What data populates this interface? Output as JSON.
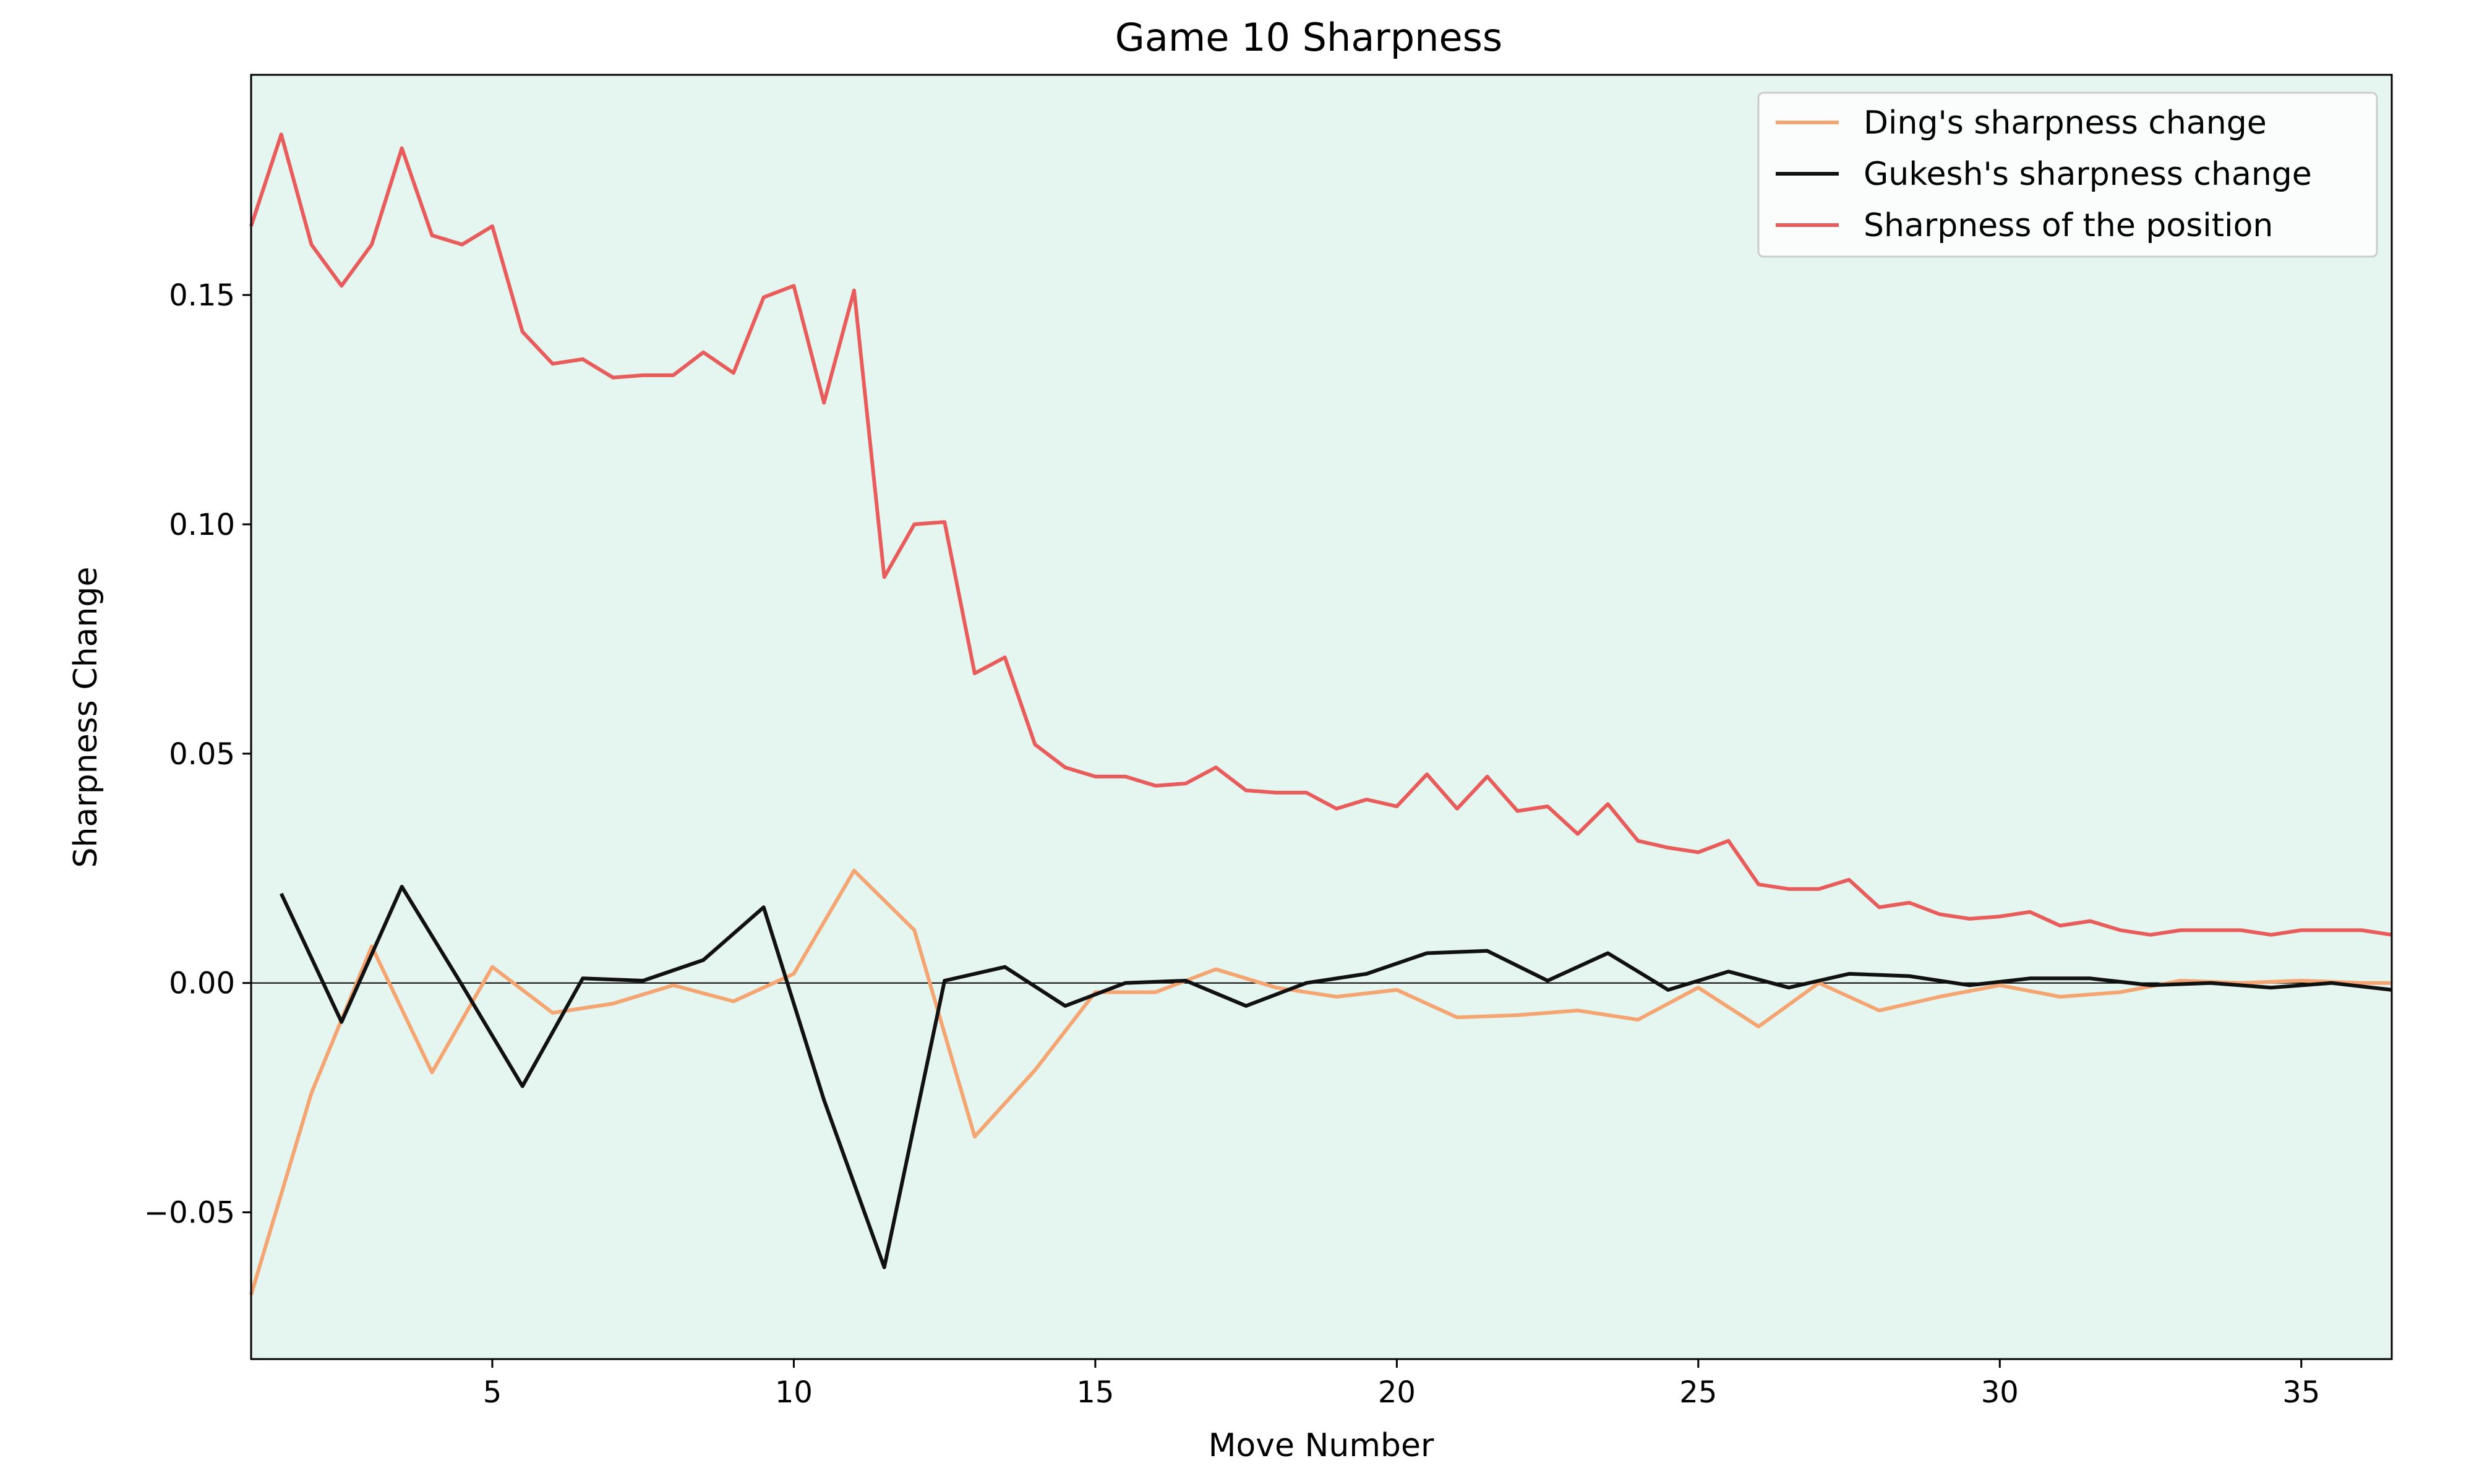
{
  "chart_data": {
    "type": "line",
    "title": "Game 10 Sharpness",
    "xlabel": "Move Number",
    "ylabel": "Sharpness Change",
    "xlim": [
      1,
      36.5
    ],
    "ylim": [
      -0.082,
      0.198
    ],
    "xticks": [
      5,
      10,
      15,
      20,
      25,
      30,
      35
    ],
    "yticks": [
      -0.05,
      0.0,
      0.05,
      0.1,
      0.15
    ],
    "ytick_labels": [
      "−0.05",
      "0.00",
      "0.05",
      "0.10",
      "0.15"
    ],
    "background": "#e5f5ef",
    "zero_line": true,
    "grid": false,
    "legend_position": "top-right",
    "series": [
      {
        "name": "Ding's sharpness change",
        "color": "#f4a572",
        "x": [
          1,
          2,
          3,
          4,
          5,
          6,
          7,
          8,
          9,
          10,
          11,
          12,
          13,
          14,
          15,
          16,
          17,
          18,
          19,
          20,
          21,
          22,
          23,
          24,
          25,
          26,
          27,
          28,
          29,
          30,
          31,
          32,
          33,
          34,
          35,
          36,
          36.5
        ],
        "y": [
          -0.068,
          -0.024,
          0.008,
          -0.0195,
          0.0035,
          -0.0065,
          -0.0045,
          -0.0005,
          -0.004,
          0.002,
          0.0245,
          0.0115,
          -0.0335,
          -0.019,
          -0.002,
          -0.002,
          0.003,
          -0.001,
          -0.003,
          -0.0015,
          -0.0075,
          -0.007,
          -0.006,
          -0.008,
          -0.001,
          -0.0095,
          0.0,
          -0.006,
          -0.003,
          -0.0005,
          -0.003,
          -0.002,
          0.0005,
          0.0,
          0.0005,
          0.0,
          0.0
        ]
      },
      {
        "name": "Gukesh's sharpness change",
        "color": "#111111",
        "x": [
          1.5,
          2.5,
          3.5,
          4.5,
          5.5,
          6.5,
          7.5,
          8.5,
          9.5,
          10.5,
          11.5,
          12.5,
          13.5,
          14.5,
          15.5,
          16.5,
          17.5,
          18.5,
          19.5,
          20.5,
          21.5,
          22.5,
          23.5,
          24.5,
          25.5,
          26.5,
          27.5,
          28.5,
          29.5,
          30.5,
          31.5,
          32.5,
          33.5,
          34.5,
          35.5,
          36.5
        ],
        "y": [
          0.0195,
          -0.0085,
          0.021,
          -0.0005,
          -0.0225,
          0.001,
          0.0005,
          0.005,
          0.0165,
          -0.0255,
          -0.062,
          0.0005,
          0.0035,
          -0.005,
          0.0,
          0.0005,
          -0.005,
          0.0,
          0.002,
          0.0065,
          0.007,
          0.0005,
          0.0065,
          -0.0015,
          0.0025,
          -0.001,
          0.002,
          0.0015,
          -0.0005,
          0.001,
          0.001,
          -0.0005,
          0.0,
          -0.001,
          0.0,
          -0.0015
        ]
      },
      {
        "name": "Sharpness of the position",
        "color": "#e85c5c",
        "x": [
          1,
          1.5,
          2,
          2.5,
          3,
          3.5,
          4,
          4.5,
          5,
          5.5,
          6,
          6.5,
          7,
          7.5,
          8,
          8.5,
          9,
          9.5,
          10,
          10.5,
          11,
          11.5,
          12,
          12.5,
          13,
          13.5,
          14,
          14.5,
          15,
          15.5,
          16,
          16.5,
          17,
          17.5,
          18,
          18.5,
          19,
          19.5,
          20,
          20.5,
          21,
          21.5,
          22,
          22.5,
          23,
          23.5,
          24,
          24.5,
          25,
          25.5,
          26,
          26.5,
          27,
          27.5,
          28,
          28.5,
          29,
          29.5,
          30,
          30.5,
          31,
          31.5,
          32,
          32.5,
          33,
          33.5,
          34,
          34.5,
          35,
          35.5,
          36,
          36.5
        ],
        "y": [
          0.165,
          0.185,
          0.161,
          0.152,
          0.161,
          0.182,
          0.163,
          0.161,
          0.165,
          0.142,
          0.135,
          0.136,
          0.132,
          0.1325,
          0.1325,
          0.1375,
          0.133,
          0.1495,
          0.152,
          0.1265,
          0.151,
          0.0885,
          0.1,
          0.1005,
          0.0675,
          0.071,
          0.052,
          0.047,
          0.045,
          0.045,
          0.043,
          0.0435,
          0.047,
          0.042,
          0.0415,
          0.0415,
          0.038,
          0.04,
          0.0385,
          0.0455,
          0.038,
          0.045,
          0.0375,
          0.0385,
          0.0325,
          0.039,
          0.031,
          0.0295,
          0.0285,
          0.031,
          0.0215,
          0.0205,
          0.0205,
          0.0225,
          0.0165,
          0.0175,
          0.015,
          0.014,
          0.0145,
          0.0155,
          0.0125,
          0.0135,
          0.0115,
          0.0105,
          0.0115,
          0.0115,
          0.0115,
          0.0105,
          0.0115,
          0.0115,
          0.0115,
          0.0105
        ]
      }
    ]
  }
}
